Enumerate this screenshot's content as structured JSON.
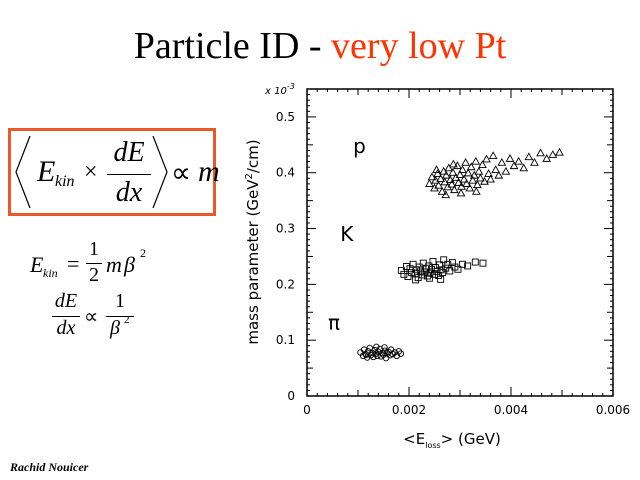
{
  "slide": {
    "title_main": "Particle ID - ",
    "title_accent": "very low Pt",
    "accent_color": "#ff3300",
    "author": "Rachid Nouicer"
  },
  "formulas": {
    "boxed": {
      "E": "E",
      "kin": "kin",
      "times": "×",
      "num": "dE",
      "den": "dx",
      "propto": "∝",
      "m": "m",
      "box_color": "#e85a2a"
    },
    "ekin": {
      "E": "E",
      "kin": "kin",
      "eq": "=",
      "num": "1",
      "den": "2",
      "m": "m",
      "beta": "β",
      "exp": "2"
    },
    "dedx": {
      "num": "dE",
      "den": "dx",
      "propto": "∝",
      "rnum": "1",
      "beta": "β",
      "exp": "2"
    }
  },
  "chart_data": {
    "type": "scatter",
    "multiplier_label": "x 10",
    "multiplier_exp": "-3",
    "ylabel_main": "mass parameter (GeV",
    "ylabel_sup": "2",
    "ylabel_end": "/cm)",
    "xlabel_main": "<E",
    "xlabel_sub": "loss",
    "xlabel_end": "> (GeV)",
    "xlim": [
      0,
      0.006
    ],
    "ylim": [
      0,
      0.55
    ],
    "x_ticks": [
      0,
      0.002,
      0.004,
      0.006
    ],
    "x_tick_labels": [
      "0",
      "0.002",
      "0.004",
      "0.006"
    ],
    "y_ticks": [
      0,
      0.1,
      0.2,
      0.3,
      0.4,
      0.5
    ],
    "y_tick_labels": [
      "0",
      "0.1",
      "0.2",
      "0.3",
      "0.4",
      "0.5"
    ],
    "grid": false,
    "series": [
      {
        "label": "π",
        "marker": "circle",
        "points": [
          [
            0.00105,
            0.078
          ],
          [
            0.0011,
            0.072
          ],
          [
            0.00112,
            0.083
          ],
          [
            0.00115,
            0.075
          ],
          [
            0.00118,
            0.069
          ],
          [
            0.0012,
            0.08
          ],
          [
            0.00123,
            0.086
          ],
          [
            0.00125,
            0.073
          ],
          [
            0.00128,
            0.077
          ],
          [
            0.0013,
            0.07
          ],
          [
            0.00133,
            0.082
          ],
          [
            0.00135,
            0.076
          ],
          [
            0.00138,
            0.072
          ],
          [
            0.0014,
            0.079
          ],
          [
            0.00143,
            0.084
          ],
          [
            0.00145,
            0.071
          ],
          [
            0.00148,
            0.077
          ],
          [
            0.0015,
            0.074
          ],
          [
            0.00153,
            0.081
          ],
          [
            0.00155,
            0.068
          ],
          [
            0.00158,
            0.076
          ],
          [
            0.0016,
            0.079
          ],
          [
            0.00163,
            0.073
          ],
          [
            0.00165,
            0.083
          ],
          [
            0.00168,
            0.075
          ],
          [
            0.00172,
            0.078
          ],
          [
            0.00176,
            0.072
          ],
          [
            0.0018,
            0.08
          ],
          [
            0.00184,
            0.076
          ],
          [
            0.00116,
            0.074
          ],
          [
            0.00136,
            0.088
          ],
          [
            0.00152,
            0.087
          ]
        ]
      },
      {
        "label": "K",
        "marker": "square",
        "points": [
          [
            0.00185,
            0.225
          ],
          [
            0.0019,
            0.218
          ],
          [
            0.00195,
            0.232
          ],
          [
            0.00198,
            0.214
          ],
          [
            0.00202,
            0.228
          ],
          [
            0.00205,
            0.221
          ],
          [
            0.00208,
            0.236
          ],
          [
            0.00212,
            0.219
          ],
          [
            0.00215,
            0.226
          ],
          [
            0.00218,
            0.212
          ],
          [
            0.0022,
            0.231
          ],
          [
            0.00223,
            0.224
          ],
          [
            0.00226,
            0.217
          ],
          [
            0.00228,
            0.238
          ],
          [
            0.00231,
            0.222
          ],
          [
            0.00234,
            0.229
          ],
          [
            0.00236,
            0.215
          ],
          [
            0.00239,
            0.233
          ],
          [
            0.00241,
            0.22
          ],
          [
            0.00244,
            0.227
          ],
          [
            0.00247,
            0.241
          ],
          [
            0.0025,
            0.218
          ],
          [
            0.00252,
            0.23
          ],
          [
            0.00255,
            0.223
          ],
          [
            0.00258,
            0.216
          ],
          [
            0.0026,
            0.235
          ],
          [
            0.00263,
            0.226
          ],
          [
            0.00266,
            0.221
          ],
          [
            0.00268,
            0.244
          ],
          [
            0.00272,
            0.229
          ],
          [
            0.00276,
            0.236
          ],
          [
            0.0028,
            0.224
          ],
          [
            0.00285,
            0.239
          ],
          [
            0.0029,
            0.231
          ],
          [
            0.00296,
            0.227
          ],
          [
            0.00305,
            0.236
          ],
          [
            0.00315,
            0.233
          ],
          [
            0.0033,
            0.24
          ],
          [
            0.00345,
            0.238
          ],
          [
            0.00213,
            0.208
          ],
          [
            0.0024,
            0.211
          ],
          [
            0.00262,
            0.209
          ]
        ]
      },
      {
        "label": "p",
        "marker": "triangle",
        "points": [
          [
            0.0024,
            0.38
          ],
          [
            0.00245,
            0.392
          ],
          [
            0.0025,
            0.372
          ],
          [
            0.00252,
            0.386
          ],
          [
            0.00256,
            0.398
          ],
          [
            0.00258,
            0.377
          ],
          [
            0.00262,
            0.389
          ],
          [
            0.00265,
            0.366
          ],
          [
            0.00268,
            0.402
          ],
          [
            0.0027,
            0.383
          ],
          [
            0.00273,
            0.395
          ],
          [
            0.00276,
            0.374
          ],
          [
            0.00278,
            0.408
          ],
          [
            0.00281,
            0.387
          ],
          [
            0.00284,
            0.379
          ],
          [
            0.00286,
            0.4
          ],
          [
            0.00289,
            0.369
          ],
          [
            0.00292,
            0.391
          ],
          [
            0.00295,
            0.412
          ],
          [
            0.00297,
            0.382
          ],
          [
            0.003,
            0.396
          ],
          [
            0.00303,
            0.375
          ],
          [
            0.00305,
            0.405
          ],
          [
            0.00308,
            0.388
          ],
          [
            0.00311,
            0.418
          ],
          [
            0.00313,
            0.38
          ],
          [
            0.00316,
            0.399
          ],
          [
            0.00319,
            0.372
          ],
          [
            0.00322,
            0.41
          ],
          [
            0.00325,
            0.386
          ],
          [
            0.00328,
            0.395
          ],
          [
            0.00331,
            0.42
          ],
          [
            0.00334,
            0.378
          ],
          [
            0.00337,
            0.402
          ],
          [
            0.0034,
            0.39
          ],
          [
            0.00344,
            0.414
          ],
          [
            0.00348,
            0.384
          ],
          [
            0.00352,
            0.424
          ],
          [
            0.00356,
            0.398
          ],
          [
            0.0036,
            0.388
          ],
          [
            0.00365,
            0.43
          ],
          [
            0.0037,
            0.405
          ],
          [
            0.00376,
            0.395
          ],
          [
            0.00382,
            0.418
          ],
          [
            0.0039,
            0.402
          ],
          [
            0.00398,
            0.425
          ],
          [
            0.00406,
            0.412
          ],
          [
            0.00415,
            0.42
          ],
          [
            0.00425,
            0.408
          ],
          [
            0.00435,
            0.428
          ],
          [
            0.00446,
            0.418
          ],
          [
            0.00458,
            0.435
          ],
          [
            0.0047,
            0.425
          ],
          [
            0.00482,
            0.432
          ],
          [
            0.00495,
            0.436
          ],
          [
            0.00272,
            0.36
          ],
          [
            0.00302,
            0.363
          ],
          [
            0.00332,
            0.366
          ],
          [
            0.00254,
            0.405
          ],
          [
            0.00287,
            0.415
          ]
        ]
      }
    ]
  }
}
